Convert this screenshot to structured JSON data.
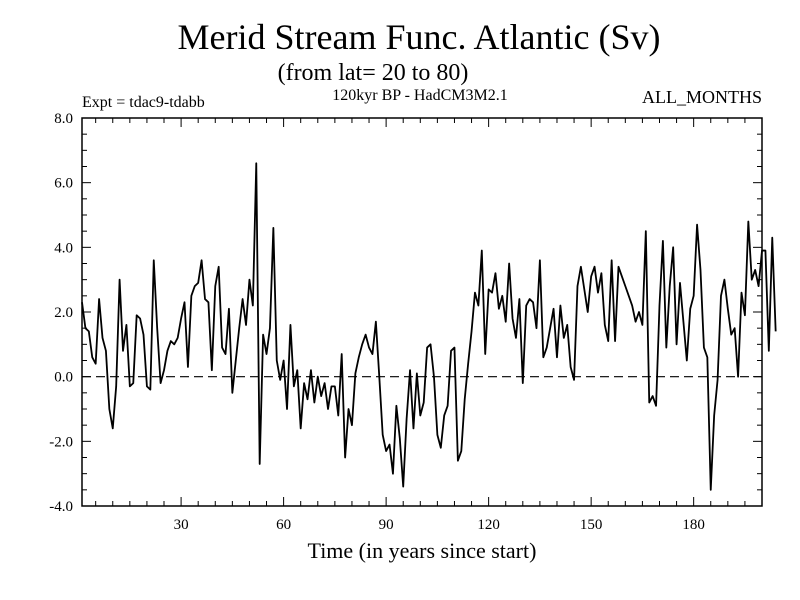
{
  "chart_data": {
    "type": "line",
    "title": "Merid Stream Func. Atlantic (Sv)",
    "subtitle": "(from lat= 20 to 80)",
    "experiment": "Expt = tdac9-tdabb",
    "model_label": "120kyr BP - HadCM3M2.1",
    "season": "ALL_MONTHS",
    "xlabel": "Time (in years since start)",
    "ylabel": "",
    "xlim": [
      1,
      200
    ],
    "ylim": [
      -4.0,
      8.0
    ],
    "x_ticks": [
      30,
      60,
      90,
      120,
      150,
      180
    ],
    "x_tick_labels": [
      "30",
      "60",
      "90",
      "120",
      "150",
      "180"
    ],
    "y_ticks": [
      -4,
      -2,
      0,
      2,
      4,
      6,
      8
    ],
    "y_tick_labels": [
      "-4.0",
      "-2.0",
      "0.0",
      "2.0",
      "4.0",
      "6.0",
      "8.0"
    ],
    "reference_line": {
      "y": 0.0,
      "style": "dashed"
    },
    "series": [
      {
        "name": "Merid Stream Func. Atlantic",
        "x_start": 1,
        "x_step": 1,
        "values": [
          2.3,
          1.5,
          1.4,
          0.6,
          0.4,
          2.4,
          1.2,
          0.8,
          -1.0,
          -1.6,
          -0.3,
          3.0,
          0.8,
          1.6,
          -0.3,
          -0.2,
          1.9,
          1.8,
          1.3,
          -0.3,
          -0.4,
          3.6,
          1.5,
          -0.2,
          0.2,
          0.8,
          1.1,
          1.0,
          1.2,
          1.8,
          2.3,
          0.3,
          2.5,
          2.8,
          2.9,
          3.6,
          2.4,
          2.3,
          0.2,
          2.8,
          3.4,
          0.9,
          0.7,
          2.1,
          -0.5,
          0.5,
          1.5,
          2.4,
          1.6,
          3.0,
          2.2,
          6.6,
          -2.7,
          1.3,
          0.7,
          1.5,
          4.6,
          0.5,
          -0.1,
          0.5,
          -1.0,
          1.6,
          -0.3,
          0.2,
          -1.6,
          -0.2,
          -0.7,
          0.2,
          -0.8,
          0.0,
          -0.6,
          -0.2,
          -1.0,
          -0.3,
          -0.3,
          -1.2,
          0.7,
          -2.5,
          -1.0,
          -1.5,
          0.1,
          0.6,
          1.0,
          1.3,
          0.9,
          0.7,
          1.7,
          0.0,
          -1.8,
          -2.3,
          -2.1,
          -3.0,
          -0.9,
          -1.9,
          -3.4,
          -1.3,
          0.2,
          -1.6,
          0.1,
          -1.2,
          -0.8,
          0.9,
          1.0,
          0.0,
          -1.8,
          -2.2,
          -1.2,
          -0.9,
          0.8,
          0.9,
          -2.6,
          -2.3,
          -0.7,
          0.4,
          1.4,
          2.6,
          2.2,
          3.9,
          0.7,
          2.7,
          2.6,
          3.2,
          2.1,
          2.5,
          1.7,
          3.5,
          1.8,
          1.2,
          2.4,
          -0.2,
          2.2,
          2.4,
          2.3,
          1.5,
          3.6,
          0.6,
          0.9,
          1.5,
          2.1,
          0.6,
          2.2,
          1.2,
          1.6,
          0.3,
          -0.1,
          2.8,
          3.4,
          2.7,
          2.0,
          3.1,
          3.4,
          2.6,
          3.2,
          1.6,
          1.1,
          3.6,
          1.1,
          3.4,
          3.1,
          2.8,
          2.5,
          2.2,
          1.7,
          2.0,
          1.6,
          4.5,
          -0.8,
          -0.6,
          -0.9,
          2.2,
          4.2,
          0.9,
          2.8,
          4.0,
          1.0,
          2.9,
          1.7,
          0.5,
          2.1,
          2.5,
          4.7,
          3.3,
          0.9,
          0.6,
          -3.5,
          -1.2,
          -0.1,
          2.5,
          3.0,
          2.1,
          1.3,
          1.5,
          0.0,
          2.6,
          1.9,
          4.8,
          3.0,
          3.3,
          2.8,
          3.9,
          3.9,
          0.8,
          4.3,
          1.4
        ]
      }
    ]
  }
}
